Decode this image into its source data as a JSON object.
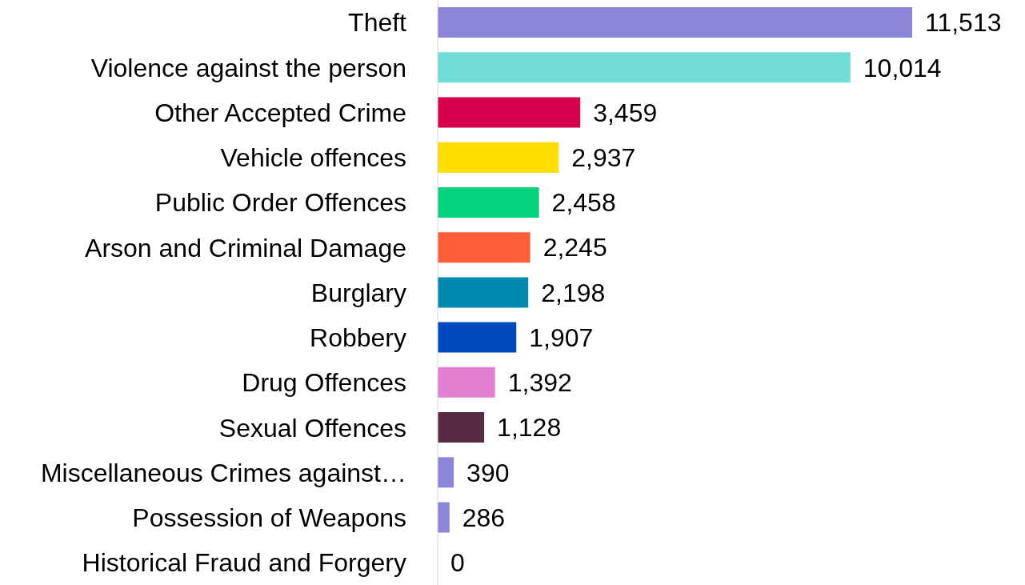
{
  "chart_data": {
    "type": "bar",
    "orientation": "horizontal",
    "value_labels": [
      "11,513",
      "10,014",
      "3,459",
      "2,937",
      "2,458",
      "2,245",
      "2,198",
      "1,907",
      "1,392",
      "1,128",
      "390",
      "286",
      "0"
    ],
    "categories": [
      "Theft",
      "Violence against the person",
      "Other Accepted Crime",
      "Vehicle offences",
      "Public Order Offences",
      "Arson and Criminal Damage",
      "Burglary",
      "Robbery",
      "Drug Offences",
      "Sexual Offences",
      "Miscellaneous Crimes against…",
      "Possession of Weapons",
      "Historical Fraud and Forgery"
    ],
    "values": [
      11513,
      10014,
      3459,
      2937,
      2458,
      2245,
      2198,
      1907,
      1392,
      1128,
      390,
      286,
      0
    ],
    "colors": [
      "#8b86d9",
      "#70ddd7",
      "#d6004f",
      "#fedd00",
      "#06d17c",
      "#ff5e3a",
      "#008ab0",
      "#004abf",
      "#e27fd0",
      "#5a2a45",
      "#8b86d9",
      "#8b86d9",
      "#8b86d9"
    ]
  }
}
